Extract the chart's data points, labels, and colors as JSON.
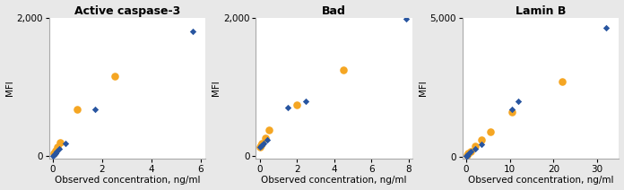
{
  "panels": [
    {
      "title": "Active caspase-3",
      "xlabel": "Observed concentration, ng/ml",
      "ylabel": "MFI",
      "xlim": [
        -0.15,
        6.2
      ],
      "ylim": [
        -30,
        2000
      ],
      "xticks": [
        0,
        2,
        4,
        6
      ],
      "yticks": [
        0,
        2000
      ],
      "blue_x": [
        0.0,
        0.03,
        0.06,
        0.1,
        0.15,
        0.25,
        0.5,
        1.7,
        5.7
      ],
      "blue_y": [
        10,
        20,
        30,
        50,
        70,
        110,
        190,
        680,
        1800
      ],
      "orange_x": [
        0.05,
        0.1,
        0.18,
        0.3,
        1.0,
        2.5
      ],
      "orange_y": [
        50,
        80,
        130,
        200,
        680,
        1150
      ]
    },
    {
      "title": "Bad",
      "xlabel": "Observed concentration, ng/ml",
      "ylabel": "MFI",
      "xlim": [
        -0.2,
        8.2
      ],
      "ylim": [
        -30,
        2000
      ],
      "xticks": [
        0,
        2,
        4,
        6,
        8
      ],
      "yticks": [
        0,
        2000
      ],
      "blue_x": [
        0.0,
        0.05,
        0.1,
        0.2,
        0.4,
        1.5,
        2.5,
        7.85
      ],
      "blue_y": [
        130,
        150,
        160,
        190,
        240,
        700,
        800,
        1980
      ],
      "orange_x": [
        0.0,
        0.05,
        0.1,
        0.3,
        0.5,
        2.0,
        4.5
      ],
      "orange_y": [
        130,
        160,
        180,
        270,
        380,
        740,
        1250
      ]
    },
    {
      "title": "Lamin B",
      "xlabel": "Observed concentration, ng/ml",
      "ylabel": "MFI",
      "xlim": [
        -0.8,
        35
      ],
      "ylim": [
        -60,
        5000
      ],
      "xticks": [
        0,
        10,
        20,
        30
      ],
      "yticks": [
        0,
        5000
      ],
      "blue_x": [
        0.0,
        0.15,
        0.3,
        0.6,
        1.1,
        2.0,
        3.5,
        10.5,
        12.0,
        32.0
      ],
      "blue_y": [
        20,
        40,
        70,
        120,
        180,
        280,
        450,
        1700,
        2000,
        4650
      ],
      "orange_x": [
        0.2,
        0.5,
        1.0,
        2.0,
        3.5,
        5.5,
        10.5,
        22.0
      ],
      "orange_y": [
        60,
        110,
        200,
        380,
        600,
        900,
        1600,
        2700
      ]
    }
  ],
  "blue_color": "#2855a0",
  "orange_color": "#f5a623",
  "blue_marker": "D",
  "orange_marker": "o",
  "blue_markersize": 14,
  "orange_markersize": 38,
  "title_fontsize": 9,
  "label_fontsize": 7.5,
  "tick_fontsize": 7.5,
  "bg_color": "#e8e8e8",
  "panel_bg": "#ffffff"
}
